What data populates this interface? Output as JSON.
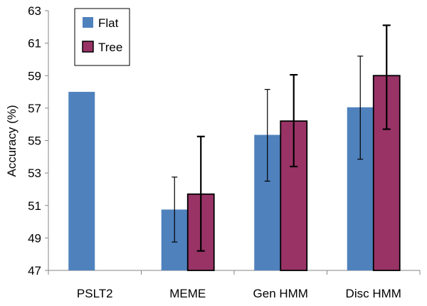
{
  "chart_data": {
    "type": "bar",
    "title": "",
    "xlabel": "",
    "ylabel": "Accuracy (%)",
    "ylim": [
      47,
      63
    ],
    "yticks": [
      47,
      49,
      51,
      53,
      55,
      57,
      59,
      61,
      63
    ],
    "grid": false,
    "legend_position": "top-left",
    "categories": [
      "PSLT2",
      "MEME",
      "Gen HMM",
      "Disc HMM"
    ],
    "series": [
      {
        "name": "Flat",
        "color": "#4F81BD",
        "values": [
          58.0,
          50.75,
          55.35,
          57.05
        ],
        "error_low": [
          null,
          48.75,
          52.5,
          53.85
        ],
        "error_high": [
          null,
          52.75,
          58.15,
          60.2
        ]
      },
      {
        "name": "Tree",
        "color": "#993366",
        "values": [
          null,
          51.7,
          56.2,
          59.0
        ],
        "error_low": [
          null,
          48.2,
          53.4,
          55.7
        ],
        "error_high": [
          null,
          55.25,
          59.05,
          62.1
        ]
      }
    ]
  }
}
